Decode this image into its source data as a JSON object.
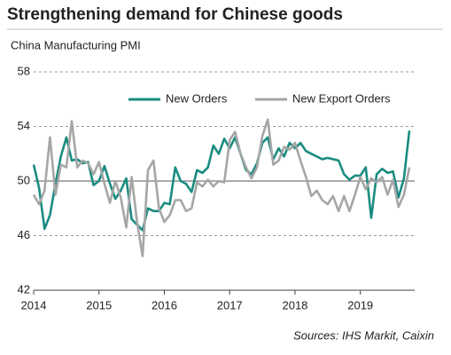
{
  "chart_data": {
    "type": "line",
    "title": "Strengthening demand for Chinese goods",
    "subtitle": "China Manufacturing PMI",
    "source": "Sources: IHS Markit, Caixin",
    "x": [
      2014,
      2014.083,
      2014.167,
      2014.25,
      2014.333,
      2014.417,
      2014.5,
      2014.583,
      2014.667,
      2014.75,
      2014.833,
      2014.917,
      2015,
      2015.083,
      2015.167,
      2015.25,
      2015.333,
      2015.417,
      2015.5,
      2015.583,
      2015.667,
      2015.75,
      2015.833,
      2015.917,
      2016,
      2016.083,
      2016.167,
      2016.25,
      2016.333,
      2016.417,
      2016.5,
      2016.583,
      2016.667,
      2016.75,
      2016.833,
      2016.917,
      2017,
      2017.083,
      2017.167,
      2017.25,
      2017.333,
      2017.417,
      2017.5,
      2017.583,
      2017.667,
      2017.75,
      2017.833,
      2017.917,
      2018,
      2018.083,
      2018.167,
      2018.25,
      2018.333,
      2018.417,
      2018.5,
      2018.583,
      2018.667,
      2018.75,
      2018.833,
      2018.917,
      2019,
      2019.083,
      2019.167,
      2019.25,
      2019.333,
      2019.417,
      2019.5,
      2019.583,
      2019.667,
      2019.75
    ],
    "series": [
      {
        "name": "New Orders",
        "color": "#1a8c80",
        "values": [
          51.2,
          49.5,
          46.5,
          47.5,
          49.8,
          51.8,
          53.2,
          51.5,
          51.6,
          51.3,
          51.4,
          49.7,
          50.0,
          51.1,
          49.8,
          48.7,
          49.3,
          50.2,
          47.2,
          46.8,
          46.4,
          48.0,
          47.8,
          47.8,
          48.4,
          48.3,
          51.0,
          50.0,
          49.8,
          49.2,
          50.8,
          50.6,
          51.0,
          52.6,
          52.0,
          53.1,
          52.4,
          53.2,
          52.0,
          50.8,
          50.5,
          51.3,
          52.8,
          53.2,
          51.6,
          52.4,
          51.8,
          52.8,
          52.4,
          52.8,
          52.2,
          52.0,
          51.8,
          51.6,
          51.7,
          51.6,
          51.5,
          50.5,
          50.1,
          50.4,
          50.4,
          51.0,
          47.3,
          50.5,
          50.9,
          50.6,
          50.7,
          48.8,
          50.2,
          53.7
        ]
      },
      {
        "name": "New Export Orders",
        "color": "#a6a6a6",
        "values": [
          49.0,
          48.3,
          49.3,
          53.2,
          49.0,
          51.2,
          51.0,
          54.4,
          51.0,
          51.5,
          51.3,
          50.5,
          51.4,
          49.8,
          48.4,
          50.0,
          48.8,
          46.6,
          50.3,
          47.0,
          44.5,
          50.8,
          51.5,
          48.0,
          47.0,
          47.5,
          48.6,
          48.6,
          47.8,
          48.0,
          49.9,
          49.6,
          50.1,
          49.6,
          50.0,
          49.9,
          53.0,
          53.6,
          52.0,
          51.0,
          50.2,
          51.0,
          53.3,
          54.5,
          51.2,
          51.5,
          52.5,
          52.3,
          52.8,
          51.5,
          50.3,
          48.9,
          49.3,
          48.6,
          48.3,
          48.9,
          47.8,
          48.9,
          47.8,
          49.0,
          50.3,
          49.4,
          50.2,
          49.9,
          50.3,
          49.0,
          50.1,
          48.1,
          49.0,
          51.0
        ]
      }
    ],
    "xlim": [
      2014,
      2019.75
    ],
    "xticks": [
      2014,
      2015,
      2016,
      2017,
      2018,
      2019
    ],
    "ylim": [
      42,
      58
    ],
    "yticks": [
      42,
      46,
      50,
      54,
      58
    ],
    "reference_line": 50,
    "grid": true,
    "legend": "top-right"
  }
}
